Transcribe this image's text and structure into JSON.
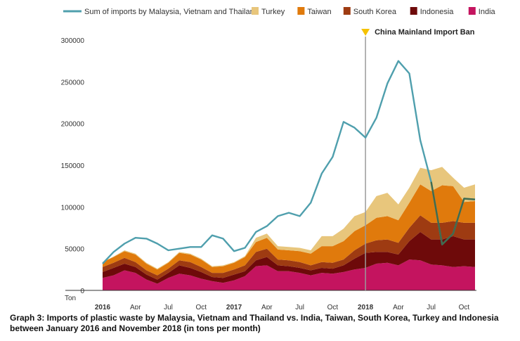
{
  "chart_data": {
    "type": "area",
    "x_tick_labels": [
      "2016",
      "Apr",
      "Jul",
      "Oct",
      "2017",
      "Apr",
      "Jul",
      "Oct",
      "2018",
      "Apr",
      "Jul",
      "Oct"
    ],
    "x_tick_bold": [
      true,
      false,
      false,
      false,
      true,
      false,
      false,
      false,
      true,
      false,
      false,
      false
    ],
    "y_ticks": [
      0,
      50000,
      100000,
      150000,
      200000,
      250000,
      300000
    ],
    "y_tick_labels": [
      "0",
      "50000",
      "100000",
      "150000",
      "200000",
      "250000",
      "300000"
    ],
    "y_unit_label": "Ton",
    "ylim": [
      0,
      300000
    ],
    "months": [
      "2016-01",
      "2016-02",
      "2016-03",
      "2016-04",
      "2016-05",
      "2016-06",
      "2016-07",
      "2016-08",
      "2016-09",
      "2016-10",
      "2016-11",
      "2016-12",
      "2017-01",
      "2017-02",
      "2017-03",
      "2017-04",
      "2017-05",
      "2017-06",
      "2017-07",
      "2017-08",
      "2017-09",
      "2017-10",
      "2017-11",
      "2017-12",
      "2018-01",
      "2018-02",
      "2018-03",
      "2018-04",
      "2018-05",
      "2018-06",
      "2018-07",
      "2018-08",
      "2018-09",
      "2018-10",
      "2018-11"
    ],
    "stacked_series": [
      {
        "name": "India",
        "color": "#c4145f",
        "values": [
          15000,
          18000,
          24000,
          21000,
          13000,
          8000,
          15000,
          20000,
          18000,
          14000,
          11000,
          9000,
          12000,
          17000,
          29000,
          30000,
          23000,
          23000,
          21000,
          18000,
          21000,
          20000,
          22000,
          25000,
          27000,
          32000,
          33000,
          30000,
          37000,
          36000,
          31000,
          30000,
          28000,
          29000,
          28000
        ]
      },
      {
        "name": "Indonesia",
        "color": "#6e0a0a",
        "values": [
          7000,
          9000,
          8000,
          7000,
          6000,
          5000,
          6000,
          10000,
          9000,
          8000,
          5000,
          6000,
          7000,
          6000,
          7000,
          10000,
          7000,
          6000,
          6000,
          6000,
          6000,
          6000,
          8000,
          13000,
          18000,
          14000,
          13000,
          13000,
          22000,
          34000,
          30000,
          31000,
          37000,
          32000,
          33000
        ]
      },
      {
        "name": "South Korea",
        "color": "#9e3b12",
        "values": [
          6000,
          6000,
          7000,
          6000,
          5000,
          5000,
          5000,
          6000,
          7000,
          6000,
          5000,
          6000,
          6000,
          7000,
          10000,
          10000,
          7000,
          7000,
          7000,
          6000,
          7000,
          7000,
          7000,
          10000,
          11000,
          14000,
          15000,
          14000,
          16000,
          20000,
          20000,
          20000,
          18000,
          20000,
          20000
        ]
      },
      {
        "name": "Taiwan",
        "color": "#e07a0c",
        "values": [
          6000,
          7000,
          8000,
          9000,
          8000,
          7000,
          7000,
          9000,
          9000,
          9000,
          7000,
          8000,
          8000,
          10000,
          12000,
          13000,
          12000,
          12000,
          13000,
          14000,
          19000,
          20000,
          22000,
          23000,
          22000,
          27000,
          28000,
          27000,
          30000,
          37000,
          38000,
          45000,
          42000,
          25000,
          26000
        ]
      },
      {
        "name": "Turkey",
        "color": "#e8c67c",
        "values": [
          0,
          500,
          1000,
          1000,
          1000,
          1000,
          1000,
          1000,
          1000,
          1000,
          1000,
          1000,
          1000,
          1000,
          5000,
          5000,
          4000,
          4000,
          4000,
          4000,
          12000,
          12000,
          15000,
          18000,
          16000,
          26000,
          28000,
          19000,
          18000,
          20000,
          25000,
          22000,
          10000,
          17000,
          20000
        ]
      }
    ],
    "line_series": {
      "name": "Sum of imports by Malaysia, Vietnam and Thailand",
      "color": "#4f9fad",
      "values": [
        32000,
        46000,
        56000,
        63000,
        62000,
        56000,
        48000,
        50000,
        52000,
        52000,
        66000,
        62000,
        47000,
        51000,
        70000,
        77000,
        89000,
        93000,
        89000,
        105000,
        140000,
        160000,
        202000,
        195000,
        183000,
        207000,
        248000,
        275000,
        260000,
        180000,
        130000,
        55000,
        68000,
        110000,
        109000
      ]
    },
    "annotation": {
      "label": "China Mainland Import Ban",
      "x": "2018-01",
      "marker_color": "#f5c200"
    },
    "legend_position": "top",
    "grid": false
  },
  "legend": {
    "line_label": "Sum of imports by Malaysia, Vietnam and Thailand",
    "items": [
      {
        "label": "Turkey",
        "color": "#e8c67c"
      },
      {
        "label": "Taiwan",
        "color": "#e07a0c"
      },
      {
        "label": "South Korea",
        "color": "#9e3b12"
      },
      {
        "label": "Indonesia",
        "color": "#6e0a0a"
      },
      {
        "label": "India",
        "color": "#c4145f"
      }
    ]
  },
  "caption": "Graph 3: Imports of plastic waste by Malaysia, Vietnam and Thailand vs. India, Taiwan, South Korea, Turkey and Indonesia between January 2016 and November 2018 (in tons per month)"
}
